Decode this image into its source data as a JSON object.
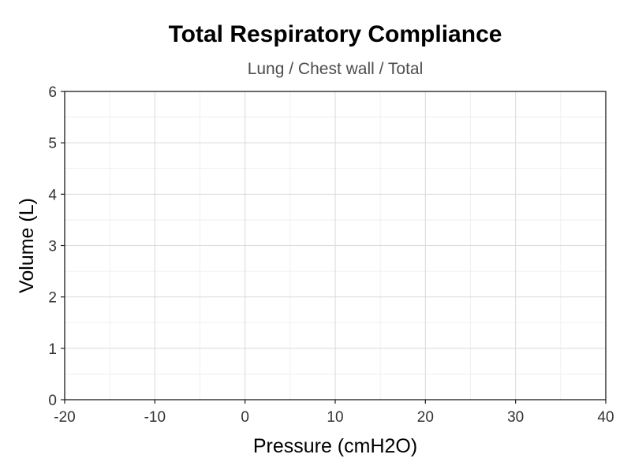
{
  "chart_data": {
    "type": "line",
    "title": "Total Respiratory Compliance",
    "subtitle": "Lung / Chest wall / Total",
    "xlabel": "Pressure (cmH2O)",
    "ylabel": "Volume (L)",
    "xlim": [
      -20,
      40
    ],
    "ylim": [
      0,
      6
    ],
    "x_ticks": [
      -20,
      -10,
      0,
      10,
      20,
      30,
      40
    ],
    "y_ticks": [
      0,
      1,
      2,
      3,
      4,
      5,
      6
    ],
    "grid": true,
    "series": [],
    "colors": {
      "major_grid": "#d9d9d9",
      "minor_grid": "#ececec",
      "axis": "#1a1a1a",
      "tick_text": "#333333",
      "subtitle_text": "#4d4d4d"
    }
  }
}
